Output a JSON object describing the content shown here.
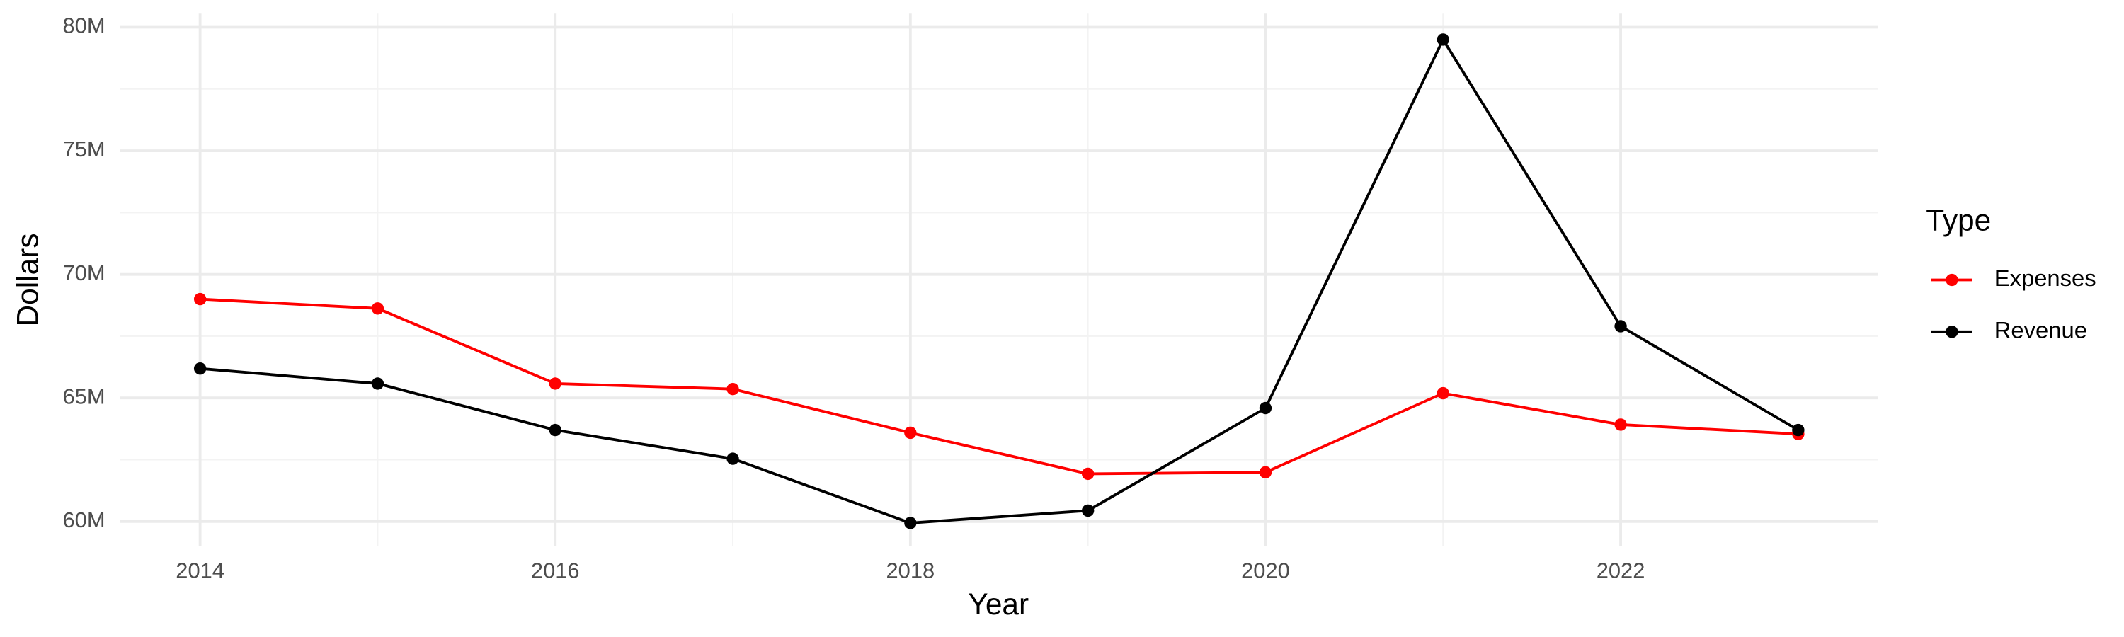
{
  "chart_data": {
    "type": "line",
    "x_label": "Year",
    "y_label": "Dollars",
    "legend_title": "Type",
    "legend_position": "right",
    "grid": true,
    "x": [
      2014,
      2015,
      2016,
      2017,
      2018,
      2019,
      2020,
      2021,
      2022,
      2023
    ],
    "series": [
      {
        "name": "Expenses",
        "color": "#ff0000",
        "values": [
          69000000,
          68620000,
          65580000,
          65360000,
          63590000,
          61930000,
          61990000,
          65190000,
          63920000,
          63540000
        ]
      },
      {
        "name": "Revenue",
        "color": "#000000",
        "values": [
          66190000,
          65580000,
          63700000,
          62540000,
          59940000,
          60440000,
          64590000,
          79500000,
          67900000,
          63700000
        ]
      }
    ],
    "xlim": [
      2013.55,
      2023.45
    ],
    "xticks": [
      2014,
      2016,
      2018,
      2020,
      2022
    ],
    "ylim": [
      59000000,
      80550000
    ],
    "yticks": [
      {
        "value": 60000000,
        "label": "60M"
      },
      {
        "value": 65000000,
        "label": "65M"
      },
      {
        "value": 70000000,
        "label": "70M"
      },
      {
        "value": 75000000,
        "label": "75M"
      },
      {
        "value": 80000000,
        "label": "80M"
      }
    ]
  }
}
